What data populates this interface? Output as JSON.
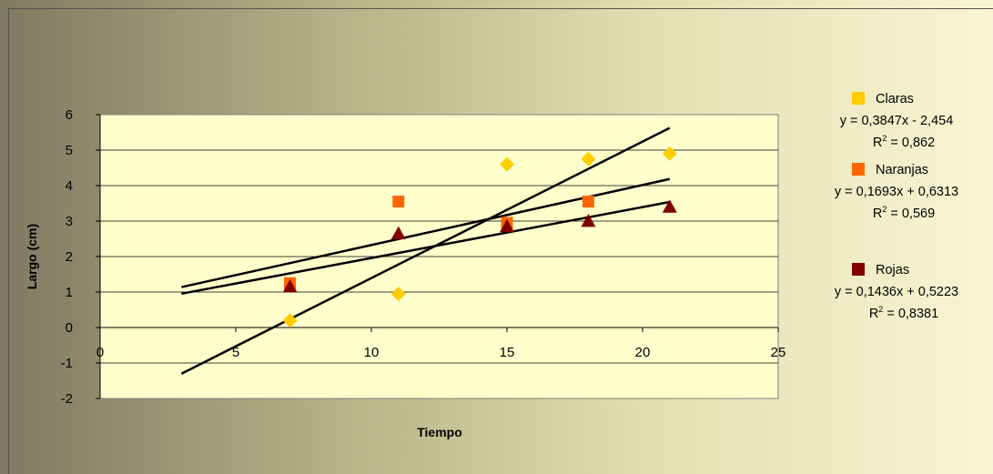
{
  "chart_data": {
    "type": "scatter",
    "xlabel": "Tiempo",
    "ylabel": "Largo (cm)",
    "xlim": [
      0,
      25
    ],
    "ylim": [
      -2,
      6
    ],
    "x_ticks": [
      "0",
      "5",
      "10",
      "15",
      "20",
      "25"
    ],
    "y_ticks": [
      "-2",
      "-1",
      "0",
      "1",
      "2",
      "3",
      "4",
      "5",
      "6"
    ],
    "grid": true,
    "plot_background": "#ffffcc",
    "series": [
      {
        "name": "Claras",
        "marker": "diamond",
        "color": "#ffcc00",
        "x": [
          7,
          11,
          15,
          18,
          21
        ],
        "y": [
          0.2,
          0.95,
          4.6,
          4.75,
          4.9
        ],
        "equation": "y = 0,3847x - 2,454",
        "r2_label": "R",
        "r2_value": " = 0,862",
        "trend": {
          "slope": 0.3847,
          "intercept": -2.454,
          "x_range": [
            3,
            21
          ]
        }
      },
      {
        "name": "Naranjas",
        "marker": "square",
        "color": "#ff6600",
        "x": [
          7,
          11,
          15,
          18
        ],
        "y": [
          1.25,
          3.55,
          2.95,
          3.55
        ],
        "equation": "y = 0,1693x + 0,6313",
        "r2_label": "R",
        "r2_value": " = 0,569",
        "trend": {
          "slope": 0.1693,
          "intercept": 0.6313,
          "x_range": [
            3,
            21
          ]
        }
      },
      {
        "name": "Rojas",
        "marker": "triangle",
        "color": "#800000",
        "x": [
          7,
          11,
          15,
          18,
          21
        ],
        "y": [
          1.15,
          2.65,
          2.85,
          3.0,
          3.4
        ],
        "equation": "y = 0,1436x + 0,5223",
        "r2_label": "R",
        "r2_value": " = 0,8381",
        "trend": {
          "slope": 0.1436,
          "intercept": 0.5223,
          "x_range": [
            3,
            21
          ]
        }
      }
    ]
  }
}
